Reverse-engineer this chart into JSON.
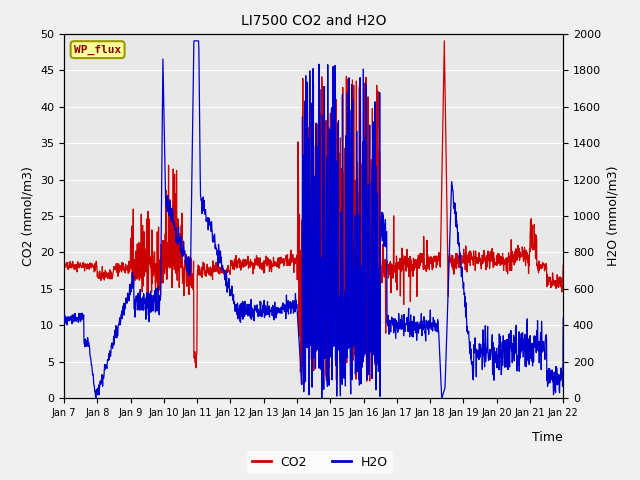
{
  "title": "LI7500 CO2 and H2O",
  "xlabel": "Time",
  "ylabel_left": "CO2 (mmol/m3)",
  "ylabel_right": "H2O (mmol/m3)",
  "watermark": "WP_flux",
  "xlim": [
    0,
    15
  ],
  "ylim_left": [
    0,
    50
  ],
  "ylim_right": [
    0,
    2000
  ],
  "yticks_left": [
    0,
    5,
    10,
    15,
    20,
    25,
    30,
    35,
    40,
    45,
    50
  ],
  "yticks_right": [
    0,
    200,
    400,
    600,
    800,
    1000,
    1200,
    1400,
    1600,
    1800,
    2000
  ],
  "xtick_labels": [
    "Jan 7",
    "Jan 8",
    "Jan 9",
    "Jan 10",
    "Jan 11",
    "Jan 12",
    "Jan 13",
    "Jan 14",
    "Jan 15",
    "Jan 16",
    "Jan 17",
    "Jan 18",
    "Jan 19",
    "Jan 20",
    "Jan 21",
    "Jan 22"
  ],
  "background_color": "#e8e8e8",
  "fig_background": "#f0f0f0",
  "co2_color": "#cc0000",
  "h2o_color": "#0000cc",
  "legend_co2": "CO2",
  "legend_h2o": "H2O",
  "watermark_facecolor": "#ffff99",
  "watermark_edgecolor": "#999900",
  "watermark_textcolor": "#880000",
  "grid_color": "#ffffff",
  "linewidth": 0.9
}
